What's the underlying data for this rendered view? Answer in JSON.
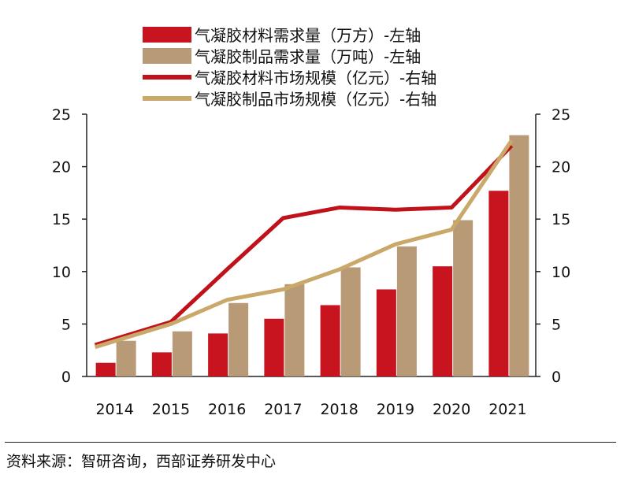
{
  "chart_data": {
    "type": "bar",
    "categories": [
      "2014",
      "2015",
      "2016",
      "2017",
      "2018",
      "2019",
      "2020",
      "2021"
    ],
    "series": [
      {
        "name": "气凝胶材料需求量（万方）-左轴",
        "kind": "bar",
        "axis": "left",
        "color": "#c8141e",
        "values": [
          1.3,
          2.3,
          4.1,
          5.5,
          6.8,
          8.3,
          10.5,
          17.7
        ]
      },
      {
        "name": "气凝胶制品需求量（万吨）-左轴",
        "kind": "bar",
        "axis": "left",
        "color": "#b89a77",
        "values": [
          3.4,
          4.3,
          7.0,
          8.8,
          10.4,
          12.4,
          14.9,
          23.0
        ]
      },
      {
        "name": "气凝胶材料市场规模（亿元）-右轴",
        "kind": "line",
        "axis": "right",
        "color": "#c0121b",
        "values": [
          3.0,
          5.2,
          10.2,
          15.1,
          16.1,
          15.9,
          16.1,
          22.0
        ]
      },
      {
        "name": "气凝胶制品市场规模（亿元）-右轴",
        "kind": "line",
        "axis": "right",
        "color": "#c9a86a",
        "values": [
          2.8,
          5.0,
          7.3,
          8.3,
          10.2,
          12.6,
          14.0,
          22.5
        ]
      }
    ],
    "ylim_left": [
      0,
      25
    ],
    "ylim_right": [
      0,
      25
    ],
    "yticks_left": [
      "0",
      "5",
      "10",
      "15",
      "20",
      "25"
    ],
    "yticks_right": [
      "0",
      "5",
      "10",
      "15",
      "20",
      "25"
    ],
    "title": "",
    "xlabel": "",
    "ylabel": "",
    "legend_position": "top"
  },
  "source": "资料来源：智研咨询，西部证券研发中心"
}
